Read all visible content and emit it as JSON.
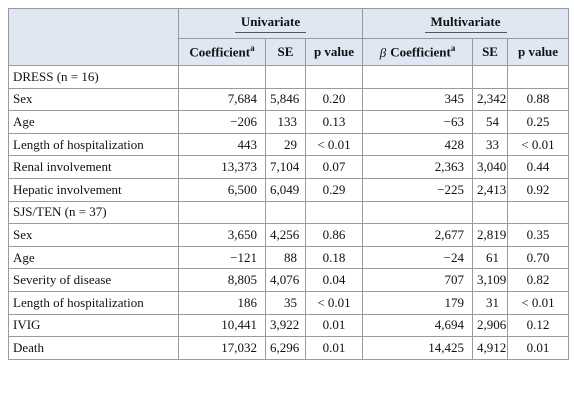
{
  "header": {
    "groups": [
      "Univariate",
      "Multivariate"
    ],
    "columns": [
      {
        "text": "Coefficient",
        "sup": "a"
      },
      {
        "text": "SE"
      },
      {
        "text": "p value"
      },
      {
        "prefix": "β",
        "text": "Coefficient",
        "sup": "a"
      },
      {
        "text": "SE"
      },
      {
        "text": "p value"
      }
    ]
  },
  "rows": [
    {
      "label": "DRESS (n = 16)"
    },
    {
      "label": "Sex",
      "cells": [
        "7,684",
        "5,846",
        "0.20",
        "345",
        "2,342",
        "0.88"
      ]
    },
    {
      "label": "Age",
      "cells": [
        "−206",
        "133",
        "0.13",
        "−63",
        "54",
        "0.25"
      ]
    },
    {
      "label": "Length of hospitalization",
      "cells": [
        "443",
        "29",
        "< 0.01",
        "428",
        "33",
        "< 0.01"
      ]
    },
    {
      "label": "Renal involvement",
      "cells": [
        "13,373",
        "7,104",
        "0.07",
        "2,363",
        "3,040",
        "0.44"
      ]
    },
    {
      "label": "Hepatic involvement",
      "cells": [
        "6,500",
        "6,049",
        "0.29",
        "−225",
        "2,413",
        "0.92"
      ]
    },
    {
      "label": "SJS/TEN (n = 37)"
    },
    {
      "label": "Sex",
      "cells": [
        "3,650",
        "4,256",
        "0.86",
        "2,677",
        "2,819",
        "0.35"
      ]
    },
    {
      "label": "Age",
      "cells": [
        "−121",
        "88",
        "0.18",
        "−24",
        "61",
        "0.70"
      ]
    },
    {
      "label": "Severity of disease",
      "cells": [
        "8,805",
        "4,076",
        "0.04",
        "707",
        "3,109",
        "0.82"
      ]
    },
    {
      "label": "Length of hospitalization",
      "cells": [
        "186",
        "35",
        "< 0.01",
        "179",
        "31",
        "< 0.01"
      ]
    },
    {
      "label": "IVIG",
      "cells": [
        "10,441",
        "3,922",
        "0.01",
        "4,694",
        "2,906",
        "0.12"
      ]
    },
    {
      "label": "Death",
      "cells": [
        "17,032",
        "6,296",
        "0.01",
        "14,425",
        "4,912",
        "0.01"
      ]
    }
  ]
}
